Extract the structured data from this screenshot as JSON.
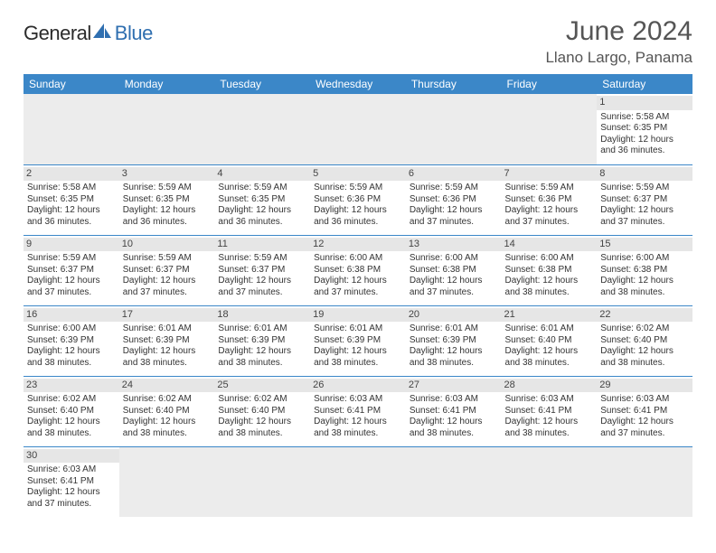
{
  "logo": {
    "part1": "General",
    "part2": "Blue"
  },
  "title": "June 2024",
  "location": "Llano Largo, Panama",
  "colors": {
    "header_bg": "#3b87c8",
    "header_text": "#ffffff",
    "daynum_bg": "#e6e6e6",
    "empty_bg": "#ececec",
    "cell_border": "#3b87c8",
    "logo_blue": "#2f6fb0"
  },
  "day_headers": [
    "Sunday",
    "Monday",
    "Tuesday",
    "Wednesday",
    "Thursday",
    "Friday",
    "Saturday"
  ],
  "weeks": [
    [
      null,
      null,
      null,
      null,
      null,
      null,
      {
        "n": "1",
        "sunrise": "Sunrise: 5:58 AM",
        "sunset": "Sunset: 6:35 PM",
        "daylight": "Daylight: 12 hours and 36 minutes."
      }
    ],
    [
      {
        "n": "2",
        "sunrise": "Sunrise: 5:58 AM",
        "sunset": "Sunset: 6:35 PM",
        "daylight": "Daylight: 12 hours and 36 minutes."
      },
      {
        "n": "3",
        "sunrise": "Sunrise: 5:59 AM",
        "sunset": "Sunset: 6:35 PM",
        "daylight": "Daylight: 12 hours and 36 minutes."
      },
      {
        "n": "4",
        "sunrise": "Sunrise: 5:59 AM",
        "sunset": "Sunset: 6:35 PM",
        "daylight": "Daylight: 12 hours and 36 minutes."
      },
      {
        "n": "5",
        "sunrise": "Sunrise: 5:59 AM",
        "sunset": "Sunset: 6:36 PM",
        "daylight": "Daylight: 12 hours and 36 minutes."
      },
      {
        "n": "6",
        "sunrise": "Sunrise: 5:59 AM",
        "sunset": "Sunset: 6:36 PM",
        "daylight": "Daylight: 12 hours and 37 minutes."
      },
      {
        "n": "7",
        "sunrise": "Sunrise: 5:59 AM",
        "sunset": "Sunset: 6:36 PM",
        "daylight": "Daylight: 12 hours and 37 minutes."
      },
      {
        "n": "8",
        "sunrise": "Sunrise: 5:59 AM",
        "sunset": "Sunset: 6:37 PM",
        "daylight": "Daylight: 12 hours and 37 minutes."
      }
    ],
    [
      {
        "n": "9",
        "sunrise": "Sunrise: 5:59 AM",
        "sunset": "Sunset: 6:37 PM",
        "daylight": "Daylight: 12 hours and 37 minutes."
      },
      {
        "n": "10",
        "sunrise": "Sunrise: 5:59 AM",
        "sunset": "Sunset: 6:37 PM",
        "daylight": "Daylight: 12 hours and 37 minutes."
      },
      {
        "n": "11",
        "sunrise": "Sunrise: 5:59 AM",
        "sunset": "Sunset: 6:37 PM",
        "daylight": "Daylight: 12 hours and 37 minutes."
      },
      {
        "n": "12",
        "sunrise": "Sunrise: 6:00 AM",
        "sunset": "Sunset: 6:38 PM",
        "daylight": "Daylight: 12 hours and 37 minutes."
      },
      {
        "n": "13",
        "sunrise": "Sunrise: 6:00 AM",
        "sunset": "Sunset: 6:38 PM",
        "daylight": "Daylight: 12 hours and 37 minutes."
      },
      {
        "n": "14",
        "sunrise": "Sunrise: 6:00 AM",
        "sunset": "Sunset: 6:38 PM",
        "daylight": "Daylight: 12 hours and 38 minutes."
      },
      {
        "n": "15",
        "sunrise": "Sunrise: 6:00 AM",
        "sunset": "Sunset: 6:38 PM",
        "daylight": "Daylight: 12 hours and 38 minutes."
      }
    ],
    [
      {
        "n": "16",
        "sunrise": "Sunrise: 6:00 AM",
        "sunset": "Sunset: 6:39 PM",
        "daylight": "Daylight: 12 hours and 38 minutes."
      },
      {
        "n": "17",
        "sunrise": "Sunrise: 6:01 AM",
        "sunset": "Sunset: 6:39 PM",
        "daylight": "Daylight: 12 hours and 38 minutes."
      },
      {
        "n": "18",
        "sunrise": "Sunrise: 6:01 AM",
        "sunset": "Sunset: 6:39 PM",
        "daylight": "Daylight: 12 hours and 38 minutes."
      },
      {
        "n": "19",
        "sunrise": "Sunrise: 6:01 AM",
        "sunset": "Sunset: 6:39 PM",
        "daylight": "Daylight: 12 hours and 38 minutes."
      },
      {
        "n": "20",
        "sunrise": "Sunrise: 6:01 AM",
        "sunset": "Sunset: 6:39 PM",
        "daylight": "Daylight: 12 hours and 38 minutes."
      },
      {
        "n": "21",
        "sunrise": "Sunrise: 6:01 AM",
        "sunset": "Sunset: 6:40 PM",
        "daylight": "Daylight: 12 hours and 38 minutes."
      },
      {
        "n": "22",
        "sunrise": "Sunrise: 6:02 AM",
        "sunset": "Sunset: 6:40 PM",
        "daylight": "Daylight: 12 hours and 38 minutes."
      }
    ],
    [
      {
        "n": "23",
        "sunrise": "Sunrise: 6:02 AM",
        "sunset": "Sunset: 6:40 PM",
        "daylight": "Daylight: 12 hours and 38 minutes."
      },
      {
        "n": "24",
        "sunrise": "Sunrise: 6:02 AM",
        "sunset": "Sunset: 6:40 PM",
        "daylight": "Daylight: 12 hours and 38 minutes."
      },
      {
        "n": "25",
        "sunrise": "Sunrise: 6:02 AM",
        "sunset": "Sunset: 6:40 PM",
        "daylight": "Daylight: 12 hours and 38 minutes."
      },
      {
        "n": "26",
        "sunrise": "Sunrise: 6:03 AM",
        "sunset": "Sunset: 6:41 PM",
        "daylight": "Daylight: 12 hours and 38 minutes."
      },
      {
        "n": "27",
        "sunrise": "Sunrise: 6:03 AM",
        "sunset": "Sunset: 6:41 PM",
        "daylight": "Daylight: 12 hours and 38 minutes."
      },
      {
        "n": "28",
        "sunrise": "Sunrise: 6:03 AM",
        "sunset": "Sunset: 6:41 PM",
        "daylight": "Daylight: 12 hours and 38 minutes."
      },
      {
        "n": "29",
        "sunrise": "Sunrise: 6:03 AM",
        "sunset": "Sunset: 6:41 PM",
        "daylight": "Daylight: 12 hours and 37 minutes."
      }
    ],
    [
      {
        "n": "30",
        "sunrise": "Sunrise: 6:03 AM",
        "sunset": "Sunset: 6:41 PM",
        "daylight": "Daylight: 12 hours and 37 minutes."
      },
      null,
      null,
      null,
      null,
      null,
      null
    ]
  ]
}
